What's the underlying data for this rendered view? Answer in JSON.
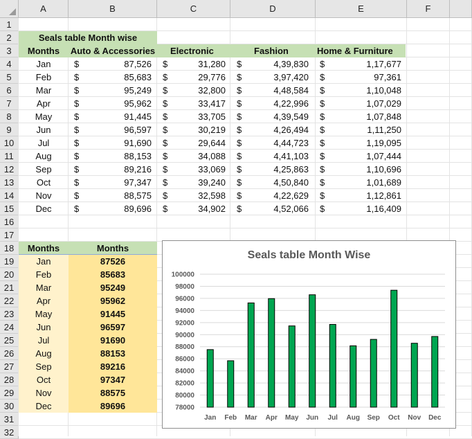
{
  "columns": [
    "A",
    "B",
    "C",
    "D",
    "E",
    "F"
  ],
  "rows": [
    "1",
    "2",
    "3",
    "4",
    "5",
    "6",
    "7",
    "8",
    "9",
    "10",
    "11",
    "12",
    "13",
    "14",
    "15",
    "16",
    "17",
    "18",
    "19",
    "20",
    "21",
    "22",
    "23",
    "24",
    "25",
    "26",
    "27",
    "28",
    "29",
    "30",
    "31",
    "32"
  ],
  "table1": {
    "title": "Seals table Month wise",
    "headers": [
      "Months",
      "Auto & Accessories",
      "Electronic",
      "Fashion",
      "Home & Furniture"
    ],
    "currency": "$",
    "rows": [
      {
        "month": "Jan",
        "auto": "87,526",
        "electronic": "31,280",
        "fashion": "4,39,830",
        "home": "1,17,677"
      },
      {
        "month": "Feb",
        "auto": "85,683",
        "electronic": "29,776",
        "fashion": "3,97,420",
        "home": "97,361"
      },
      {
        "month": "Mar",
        "auto": "95,249",
        "electronic": "32,800",
        "fashion": "4,48,584",
        "home": "1,10,048"
      },
      {
        "month": "Apr",
        "auto": "95,962",
        "electronic": "33,417",
        "fashion": "4,22,996",
        "home": "1,07,029"
      },
      {
        "month": "May",
        "auto": "91,445",
        "electronic": "33,705",
        "fashion": "4,39,549",
        "home": "1,07,848"
      },
      {
        "month": "Jun",
        "auto": "96,597",
        "electronic": "30,219",
        "fashion": "4,26,494",
        "home": "1,11,250"
      },
      {
        "month": "Jul",
        "auto": "91,690",
        "electronic": "29,644",
        "fashion": "4,44,723",
        "home": "1,19,095"
      },
      {
        "month": "Aug",
        "auto": "88,153",
        "electronic": "34,088",
        "fashion": "4,41,103",
        "home": "1,07,444"
      },
      {
        "month": "Sep",
        "auto": "89,216",
        "electronic": "33,069",
        "fashion": "4,25,863",
        "home": "1,10,696"
      },
      {
        "month": "Oct",
        "auto": "97,347",
        "electronic": "39,240",
        "fashion": "4,50,840",
        "home": "1,01,689"
      },
      {
        "month": "Nov",
        "auto": "88,575",
        "electronic": "32,598",
        "fashion": "4,22,629",
        "home": "1,12,861"
      },
      {
        "month": "Dec",
        "auto": "89,696",
        "electronic": "34,902",
        "fashion": "4,52,066",
        "home": "1,16,409"
      }
    ]
  },
  "table2": {
    "headers": [
      "Months",
      "Months"
    ],
    "rows": [
      {
        "month": "Jan",
        "value": "87526"
      },
      {
        "month": "Feb",
        "value": "85683"
      },
      {
        "month": "Mar",
        "value": "95249"
      },
      {
        "month": "Apr",
        "value": "95962"
      },
      {
        "month": "May",
        "value": "91445"
      },
      {
        "month": "Jun",
        "value": "96597"
      },
      {
        "month": "Jul",
        "value": "91690"
      },
      {
        "month": "Aug",
        "value": "88153"
      },
      {
        "month": "Sep",
        "value": "89216"
      },
      {
        "month": "Oct",
        "value": "97347"
      },
      {
        "month": "Nov",
        "value": "88575"
      },
      {
        "month": "Dec",
        "value": "89696"
      }
    ]
  },
  "colors": {
    "header_green": "#c6e0b4",
    "month_fill": "#fff2cc",
    "value_fill": "#ffe699",
    "bar_fill": "#00a651",
    "bar_stroke": "#000000"
  },
  "chart_data": {
    "type": "bar",
    "title": "Seals table Month Wise",
    "categories": [
      "Jan",
      "Feb",
      "Mar",
      "Apr",
      "May",
      "Jun",
      "Jul",
      "Aug",
      "Sep",
      "Oct",
      "Nov",
      "Dec"
    ],
    "values": [
      87526,
      85683,
      95249,
      95962,
      91445,
      96597,
      91690,
      88153,
      89216,
      97347,
      88575,
      89696
    ],
    "ylim": [
      78000,
      100000
    ],
    "yticks": [
      "78000",
      "80000",
      "82000",
      "84000",
      "86000",
      "88000",
      "90000",
      "92000",
      "94000",
      "96000",
      "98000",
      "100000"
    ],
    "grid": true,
    "legend": "none",
    "xlabel": "",
    "ylabel": ""
  }
}
